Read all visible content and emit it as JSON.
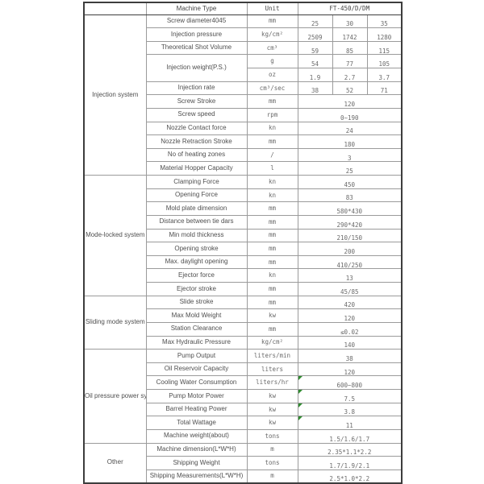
{
  "table": {
    "header": {
      "machine_type": "Machine Type",
      "unit": "Unit",
      "model": "FT-450/D/DM"
    },
    "accent_green": "#2e8b2e",
    "sections": [
      {
        "group": "Injection system",
        "rows": [
          {
            "label": "Screw diameter4045",
            "unit": "mm",
            "cells": [
              "25",
              "30",
              "35"
            ]
          },
          {
            "label": "Injection pressure",
            "unit": "kg/cm²",
            "cells": [
              "2509",
              "1742",
              "1280"
            ]
          },
          {
            "label": "Theoretical Shot Volume",
            "unit": "cm³",
            "cells": [
              "59",
              "85",
              "115"
            ]
          },
          {
            "label": "Injection weight(P.S.)",
            "label_rowspan": 2,
            "unit": "g",
            "cells": [
              "54",
              "77",
              "105"
            ]
          },
          {
            "label": null,
            "unit": "oz",
            "cells": [
              "1.9",
              "2.7",
              "3.7"
            ]
          },
          {
            "label": "Injection rate",
            "unit": "cm³/sec",
            "cells": [
              "38",
              "52",
              "71"
            ]
          },
          {
            "label": "Screw Stroke",
            "unit": "mm",
            "value": "120"
          },
          {
            "label": "Screw speed",
            "unit": "rpm",
            "value": "0~190"
          },
          {
            "label": "Nozzle Contact force",
            "unit": "kn",
            "value": "24"
          },
          {
            "label": "Nozzle Retraction Stroke",
            "unit": "mm",
            "value": "180"
          },
          {
            "label": "No of heating zones",
            "unit": "/",
            "value": "3"
          },
          {
            "label": "Material Hopper Capacity",
            "unit": "l",
            "value": "25"
          }
        ]
      },
      {
        "group": "Mode-locked system",
        "rows": [
          {
            "label": "Clamping Force",
            "unit": "kn",
            "value": "450"
          },
          {
            "label": "Opening Force",
            "unit": "kn",
            "value": "83"
          },
          {
            "label": "Mold plate dimension",
            "unit": "mm",
            "value": "580*430"
          },
          {
            "label": "Distance between tie dars",
            "unit": "mm",
            "value": "290*420"
          },
          {
            "label": "Min mold thickness",
            "unit": "mm",
            "value": "210/150"
          },
          {
            "label": "Opening stroke",
            "unit": "mm",
            "value": "200"
          },
          {
            "label": "Max. daylight opening",
            "unit": "mm",
            "value": "410/250"
          },
          {
            "label": "Ejector force",
            "unit": "kn",
            "value": "13"
          },
          {
            "label": "Ejector stroke",
            "unit": "mm",
            "value": "45/85"
          }
        ]
      },
      {
        "group": "Sliding mode system",
        "rows": [
          {
            "label": "Slide stroke",
            "unit": "mm",
            "value": "420"
          },
          {
            "label": "Max Mold Weight",
            "unit": "kw",
            "value": "120"
          },
          {
            "label": "Station Clearance",
            "unit": "mm",
            "value": "≤0.02"
          },
          {
            "label": "Max Hydraulic Pressure",
            "unit": "kg/cm²",
            "value": "140"
          }
        ]
      },
      {
        "group": "Oil pressure power system",
        "rows": [
          {
            "label": "Pump Output",
            "unit": "liters/min",
            "value": "38"
          },
          {
            "label": "Oil Reservoir Capacity",
            "unit": "liters",
            "value": "120"
          },
          {
            "label": "Cooling Water Consumption",
            "unit": "liters/hr",
            "value": "600~800",
            "mark": true
          },
          {
            "label": "Pump Motor Power",
            "unit": "kw",
            "value": "7.5",
            "mark": true
          },
          {
            "label": "Barrel Heating Power",
            "unit": "kw",
            "value": "3.8",
            "mark": true
          },
          {
            "label": "Total Wattage",
            "unit": "kw",
            "value": "11",
            "mark": true
          },
          {
            "label": "Machine weight(about)",
            "unit": "tons",
            "value": "1.5/1.6/1.7"
          }
        ]
      },
      {
        "group": "Other",
        "rows": [
          {
            "label": "Machine dimension(L*W*H)",
            "unit": "m",
            "value": "2.35*1.1*2.2"
          },
          {
            "label": "Shipping Weight",
            "unit": "tons",
            "value": "1.7/1.9/2.1"
          },
          {
            "label": "Shipping Measurements(L*W*H)",
            "unit": "m",
            "value": "2.5*1.0*2.2"
          }
        ]
      }
    ]
  }
}
